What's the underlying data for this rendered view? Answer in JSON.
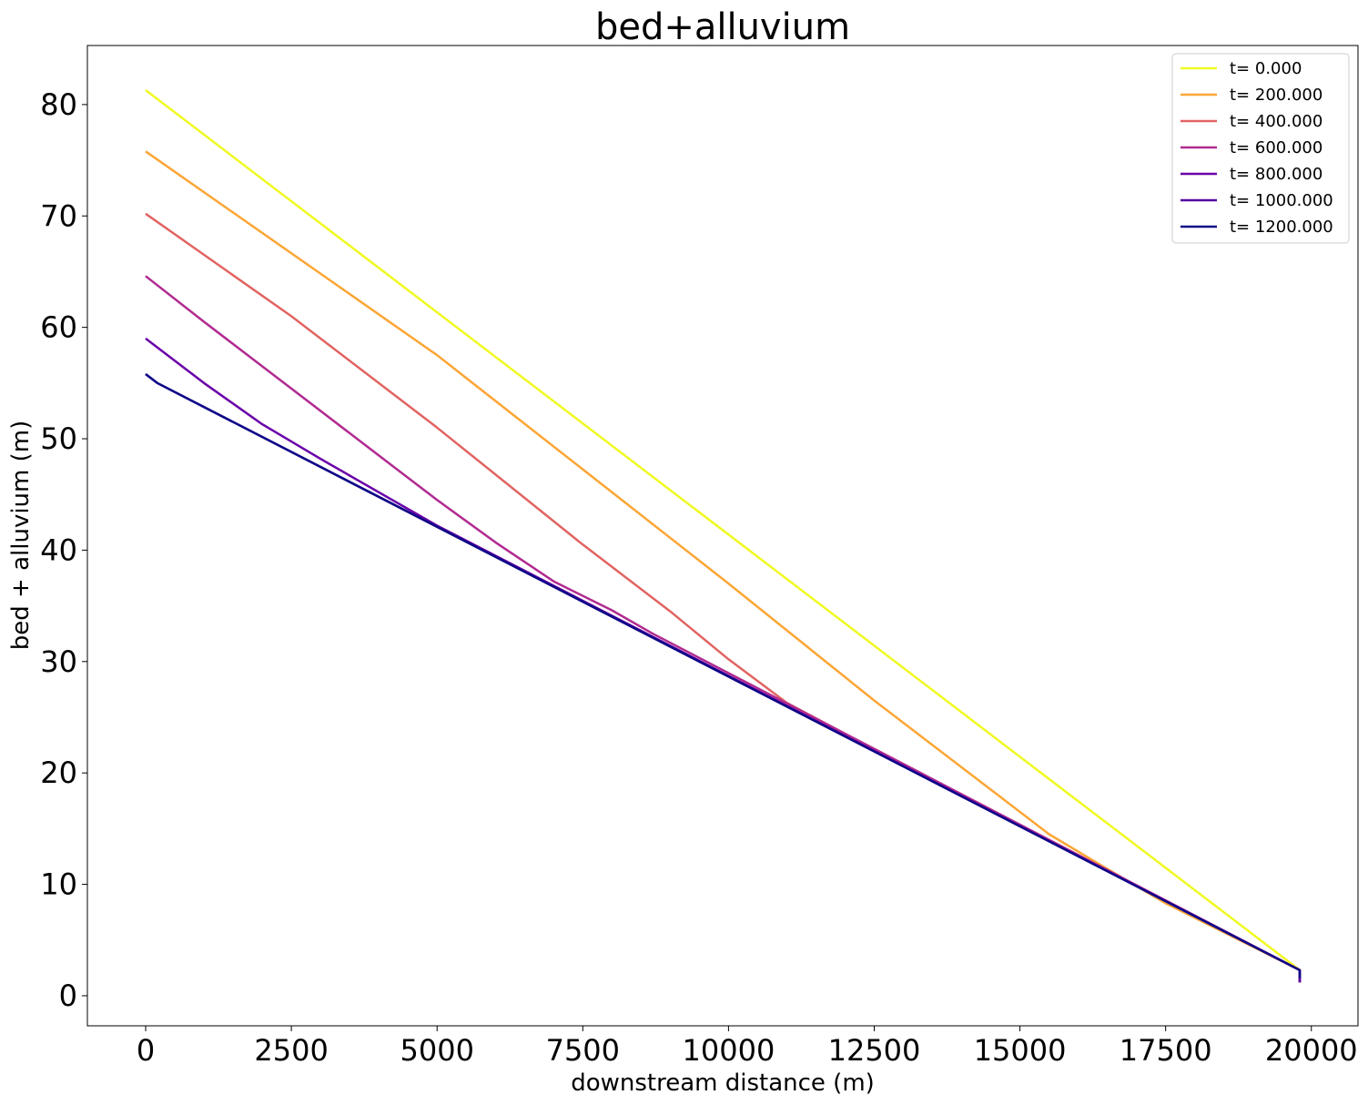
{
  "chart_data": {
    "type": "line",
    "title": "bed+alluvium",
    "xlabel": "downstream distance (m)",
    "ylabel": "bed + alluvium (m)",
    "xlim": [
      -1000,
      20800
    ],
    "ylim": [
      -2.7,
      85.3
    ],
    "xticks": [
      0,
      2500,
      5000,
      7500,
      10000,
      12500,
      15000,
      17500,
      20000
    ],
    "yticks": [
      0,
      10,
      20,
      30,
      40,
      50,
      60,
      70,
      80
    ],
    "grid": false,
    "legend_position": "top-right",
    "series": [
      {
        "name": "t= 0.000",
        "color": "#f0f921",
        "points": [
          [
            0,
            81.3
          ],
          [
            19800,
            2.3
          ],
          [
            19800,
            1.2
          ]
        ]
      },
      {
        "name": "t= 200.000",
        "color": "#fca636",
        "points": [
          [
            0,
            75.8
          ],
          [
            5000,
            57.5
          ],
          [
            10000,
            37.0
          ],
          [
            12500,
            26.5
          ],
          [
            14500,
            18.5
          ],
          [
            15500,
            14.5
          ],
          [
            16300,
            12.0
          ],
          [
            17500,
            8.3
          ],
          [
            19800,
            2.3
          ],
          [
            19800,
            1.2
          ]
        ]
      },
      {
        "name": "t= 400.000",
        "color": "#e16462",
        "points": [
          [
            0,
            70.2
          ],
          [
            2500,
            61.0
          ],
          [
            5000,
            51.0
          ],
          [
            7500,
            40.5
          ],
          [
            9000,
            34.5
          ],
          [
            10000,
            30.2
          ],
          [
            11000,
            26.3
          ],
          [
            12000,
            23.5
          ],
          [
            12500,
            22.0
          ],
          [
            19800,
            2.3
          ],
          [
            19800,
            1.2
          ]
        ]
      },
      {
        "name": "t= 600.000",
        "color": "#b12a90",
        "points": [
          [
            0,
            64.6
          ],
          [
            1000,
            60.5
          ],
          [
            2500,
            54.5
          ],
          [
            4000,
            48.5
          ],
          [
            5000,
            44.5
          ],
          [
            6000,
            40.7
          ],
          [
            7000,
            37.2
          ],
          [
            8000,
            34.6
          ],
          [
            8700,
            32.5
          ],
          [
            19800,
            2.3
          ],
          [
            19800,
            1.2
          ]
        ]
      },
      {
        "name": "t= 800.000",
        "color": "#6a00a8",
        "points": [
          [
            0,
            59.0
          ],
          [
            1000,
            55.0
          ],
          [
            2000,
            51.3
          ],
          [
            3000,
            48.2
          ],
          [
            4000,
            45.2
          ],
          [
            5000,
            42.2
          ],
          [
            19800,
            2.3
          ],
          [
            19800,
            1.2
          ]
        ]
      },
      {
        "name": "t= 1000.000",
        "color": "#5302a3",
        "points": [
          [
            0,
            55.8
          ],
          [
            200,
            55.0
          ],
          [
            19800,
            2.3
          ],
          [
            19800,
            1.2
          ]
        ]
      },
      {
        "name": "t= 1200.000",
        "color": "#0d0887",
        "points": [
          [
            0,
            55.8
          ],
          [
            200,
            55.0
          ],
          [
            19800,
            2.3
          ],
          [
            19800,
            1.6
          ]
        ]
      }
    ]
  }
}
